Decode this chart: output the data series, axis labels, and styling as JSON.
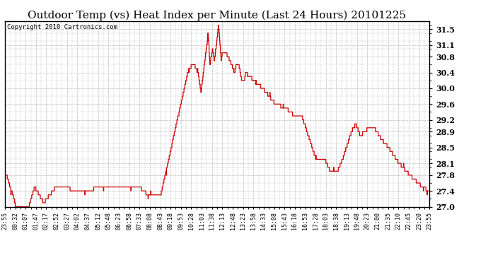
{
  "title": "Outdoor Temp (vs) Heat Index per Minute (Last 24 Hours) 20101225",
  "copyright": "Copyright 2010 Cartronics.com",
  "line_color": "#cc0000",
  "background_color": "#ffffff",
  "plot_bg_color": "#ffffff",
  "grid_color": "#bbbbbb",
  "ylim": [
    27.0,
    31.7
  ],
  "yticks": [
    27.0,
    27.4,
    27.8,
    28.1,
    28.5,
    28.9,
    29.2,
    29.6,
    30.0,
    30.4,
    30.8,
    31.1,
    31.5
  ],
  "xtick_labels": [
    "23:55",
    "00:32",
    "01:07",
    "01:47",
    "02:17",
    "02:52",
    "03:27",
    "04:02",
    "04:37",
    "05:12",
    "05:48",
    "06:23",
    "06:58",
    "07:33",
    "08:08",
    "08:43",
    "09:18",
    "09:53",
    "10:28",
    "11:03",
    "11:38",
    "12:13",
    "12:48",
    "13:23",
    "13:58",
    "14:33",
    "15:08",
    "15:43",
    "16:18",
    "16:53",
    "17:28",
    "18:03",
    "18:38",
    "19:13",
    "19:48",
    "20:23",
    "21:00",
    "21:35",
    "22:10",
    "22:45",
    "23:20",
    "23:55"
  ],
  "title_fontsize": 11,
  "tick_fontsize": 6,
  "copyright_fontsize": 6.5,
  "ytick_fontsize": 8
}
